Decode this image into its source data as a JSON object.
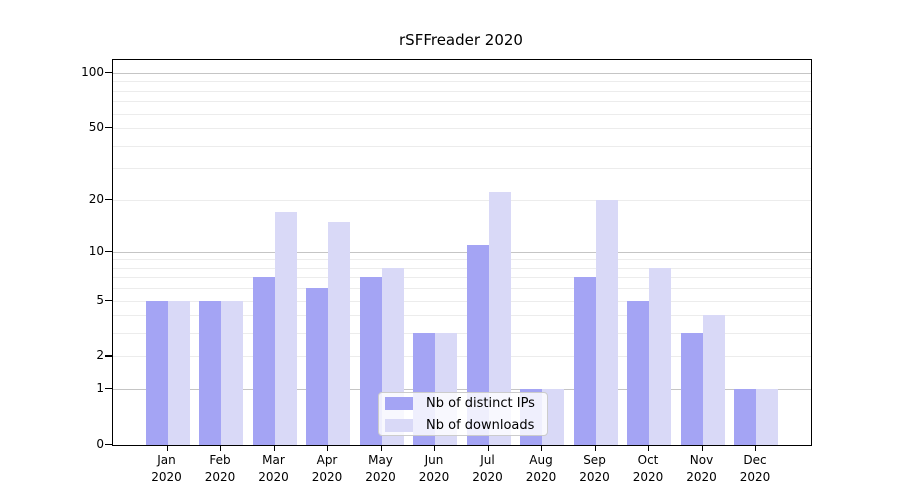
{
  "chart_data": {
    "type": "bar",
    "title": "rSFFreader 2020",
    "categories": [
      "Jan",
      "Feb",
      "Mar",
      "Apr",
      "May",
      "Jun",
      "Jul",
      "Aug",
      "Sep",
      "Oct",
      "Nov",
      "Dec"
    ],
    "category_sub_label": "2020",
    "series": [
      {
        "name": "Nb of distinct IPs",
        "color": "#a4a4f4",
        "values": [
          5,
          5,
          7,
          6,
          7,
          3,
          11,
          1,
          7,
          5,
          3,
          1
        ]
      },
      {
        "name": "Nb of downloads",
        "color": "#d9d9f7",
        "values": [
          5,
          5,
          17,
          15,
          8,
          3,
          22,
          1,
          20,
          8,
          4,
          1
        ]
      }
    ],
    "y_axis": {
      "scale": "log1p",
      "tick_values": [
        0,
        1,
        2,
        5,
        10,
        20,
        50,
        100
      ],
      "tick_labels": [
        "0",
        "1",
        "2",
        "5",
        "10",
        "20",
        "50",
        "100"
      ],
      "decade_grid_values": [
        1,
        10,
        100
      ],
      "minor_grid_values": [
        2,
        3,
        4,
        5,
        6,
        7,
        8,
        9,
        20,
        30,
        40,
        50,
        60,
        70,
        80,
        90
      ],
      "range_top_value": 117
    },
    "legend_position": "lower center",
    "grid": true,
    "colors": {
      "grid_decade": "#c5c5c5",
      "grid_minor": "#ececec",
      "axis": "#000000",
      "text": "#000000",
      "legend_border": "#cccccc"
    }
  }
}
